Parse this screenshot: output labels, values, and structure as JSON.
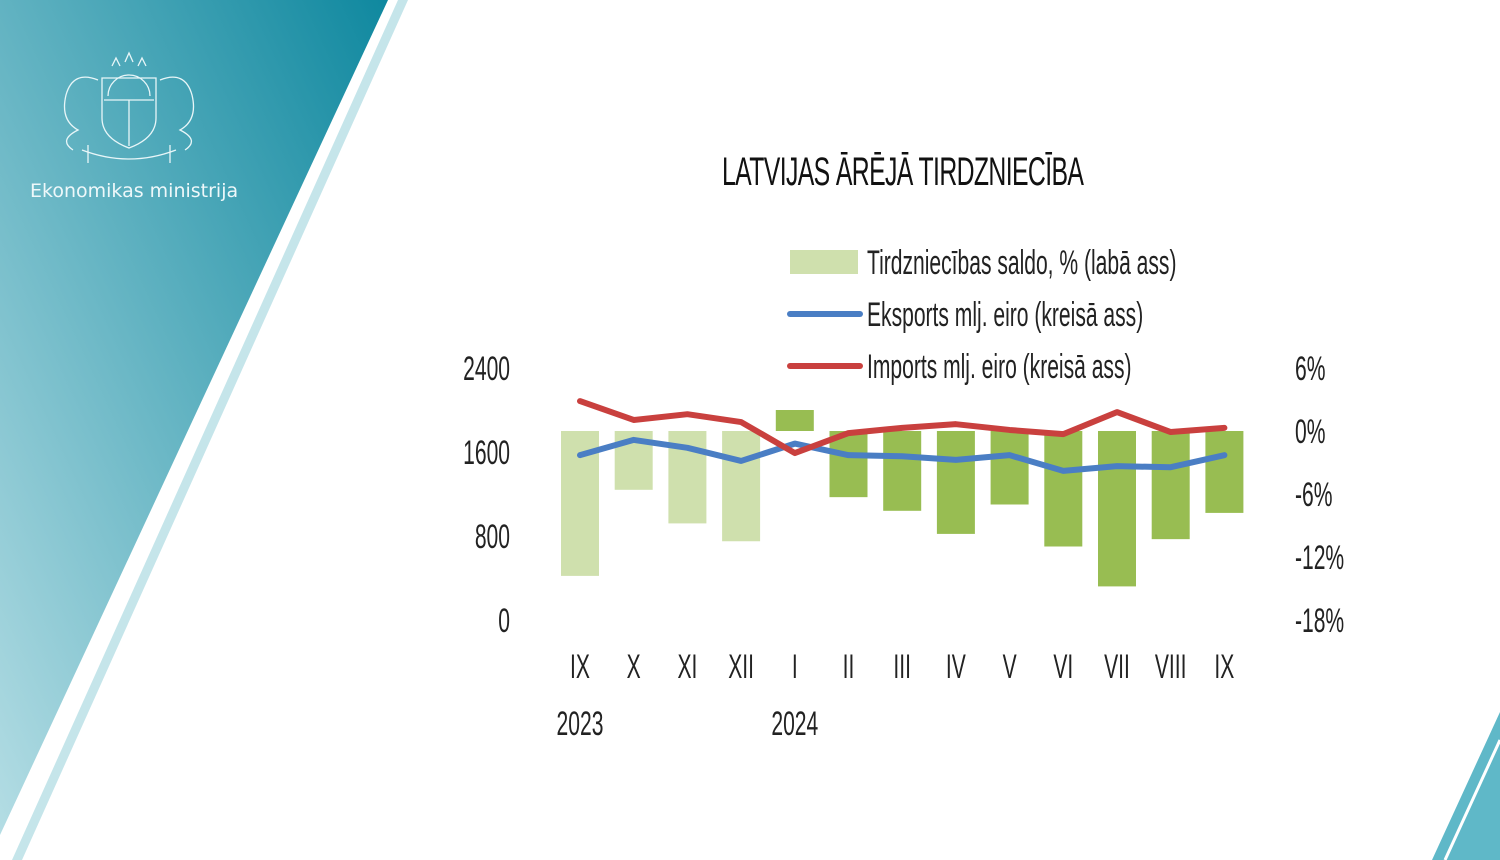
{
  "brand": {
    "name": "Ekonomikas ministrija",
    "logo": "Latvian coat of arms"
  },
  "colors": {
    "teal_dark": "#118ba1",
    "teal_light": "#a9d8e0",
    "bar_2023": "#cfe0ad",
    "bar_2024": "#98bd52",
    "export": "#4a7ec4",
    "import": "#c9403e"
  },
  "chart_data": {
    "type": "bar+line",
    "title": "LATVIJAS ĀRĒJĀ TIRDZNIECĪBA",
    "categories": [
      "IX",
      "X",
      "XI",
      "XII",
      "I",
      "II",
      "III",
      "IV",
      "V",
      "VI",
      "VII",
      "VIII",
      "IX"
    ],
    "year_labels": [
      {
        "label": "2023",
        "at": 0
      },
      {
        "label": "2024",
        "at": 4
      }
    ],
    "left_axis": {
      "ylim": [
        0,
        2400
      ],
      "ticks": [
        "0",
        "800",
        "1600",
        "2400"
      ]
    },
    "right_axis": {
      "ylim": [
        -18,
        6
      ],
      "ticks": [
        "-18%",
        "-12%",
        "-6%",
        "0%",
        "6%"
      ]
    },
    "legend_position": "top",
    "grid": false,
    "series": [
      {
        "name": "Tirdzniecības saldo, % (labā ass)",
        "type": "bar",
        "axis": "right",
        "values": [
          -13.8,
          -5.6,
          -8.8,
          -10.5,
          2.0,
          -6.3,
          -7.6,
          -9.8,
          -7.0,
          -11.0,
          -14.8,
          -10.3,
          -7.8
        ]
      },
      {
        "name": "Eksports mlj. eiro (kreisā ass)",
        "type": "line",
        "axis": "left",
        "values": [
          1570,
          1715,
          1640,
          1515,
          1680,
          1570,
          1560,
          1525,
          1570,
          1420,
          1465,
          1455,
          1570
        ]
      },
      {
        "name": "Imports mlj. eiro (kreisā ass)",
        "type": "line",
        "axis": "left",
        "values": [
          2085,
          1905,
          1960,
          1885,
          1590,
          1780,
          1830,
          1865,
          1810,
          1770,
          1980,
          1790,
          1830
        ]
      }
    ]
  }
}
